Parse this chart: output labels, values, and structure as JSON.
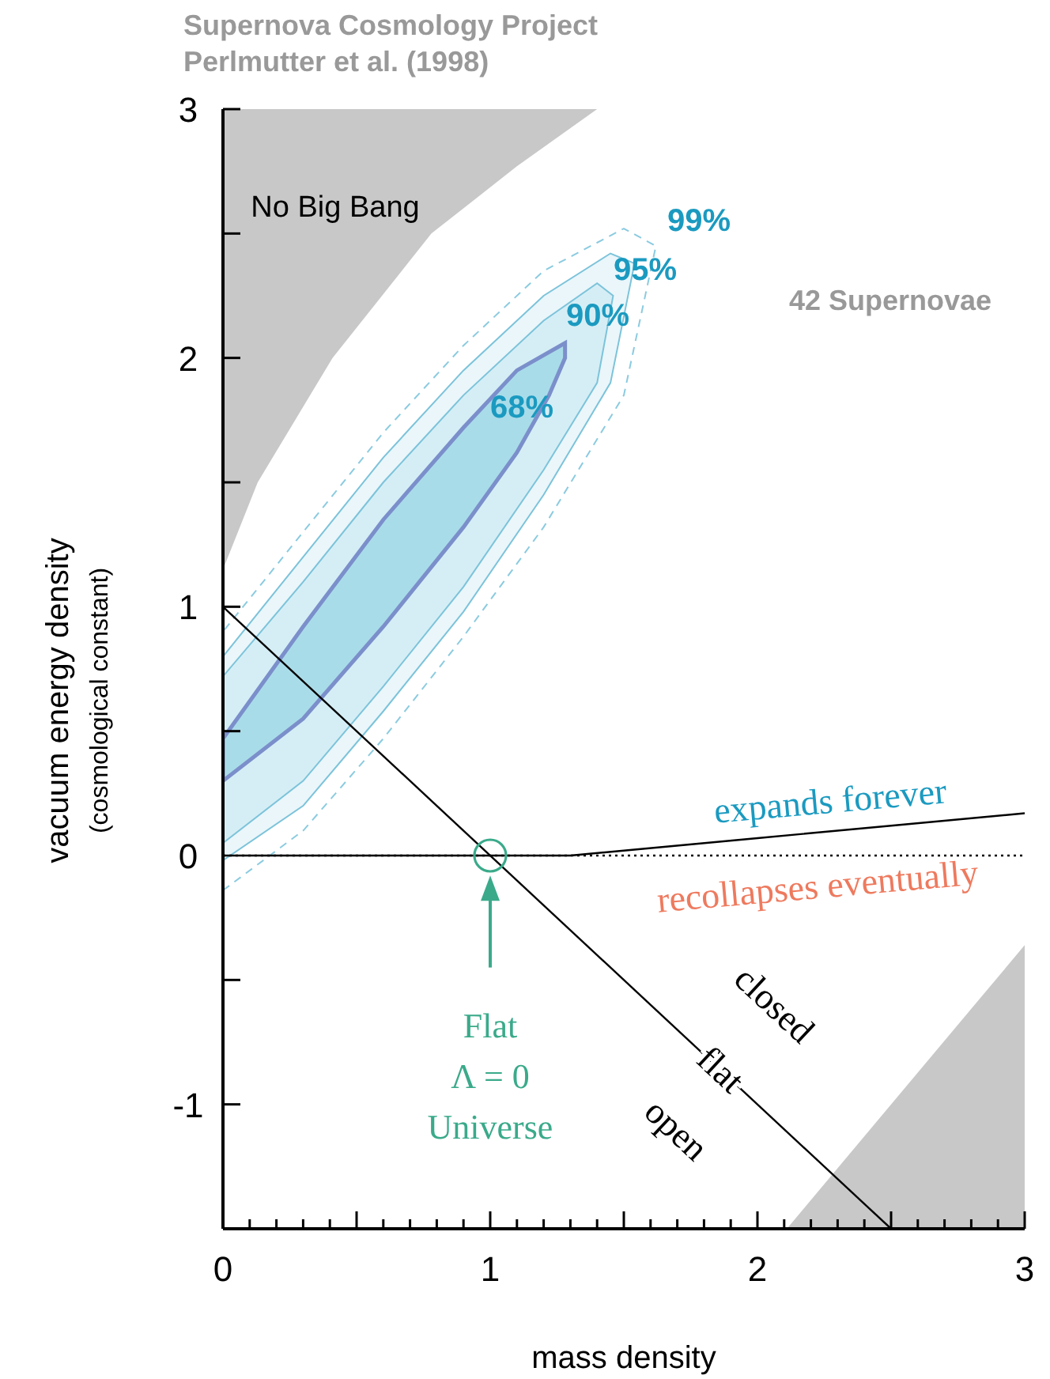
{
  "chart_data": {
    "type": "area",
    "title": "Supernova Cosmology Project",
    "subtitle": "Perlmutter et al. (1998)",
    "xlabel": "mass density",
    "ylabel": "vacuum energy density\n(cosmological constant)",
    "xlim": [
      0,
      3
    ],
    "ylim": [
      -1.5,
      3
    ],
    "xticks": [
      0,
      {
        "value": 0.1,
        "label": null
      },
      {
        "value": 0.2,
        "label": null
      },
      {
        "value": 0.3,
        "label": null
      },
      {
        "value": 0.4,
        "label": null
      },
      {
        "value": 0.5,
        "label": null
      },
      {
        "value": 0.6,
        "label": null
      },
      {
        "value": 0.7,
        "label": null
      },
      {
        "value": 0.8,
        "label": null
      },
      {
        "value": 0.9,
        "label": null
      },
      1,
      {
        "value": 1.1,
        "label": null
      },
      {
        "value": 1.2,
        "label": null
      },
      {
        "value": 1.3,
        "label": null
      },
      {
        "value": 1.4,
        "label": null
      },
      {
        "value": 1.5,
        "label": null
      },
      {
        "value": 1.6,
        "label": null
      },
      {
        "value": 1.7,
        "label": null
      },
      {
        "value": 1.8,
        "label": null
      },
      {
        "value": 1.9,
        "label": null
      },
      2,
      {
        "value": 2.1,
        "label": null
      },
      {
        "value": 2.2,
        "label": null
      },
      {
        "value": 2.3,
        "label": null
      },
      {
        "value": 2.4,
        "label": null
      },
      {
        "value": 2.5,
        "label": null
      },
      {
        "value": 2.6,
        "label": null
      },
      {
        "value": 2.7,
        "label": null
      },
      {
        "value": 2.8,
        "label": null
      },
      {
        "value": 2.9,
        "label": null
      },
      3
    ],
    "yticks": [
      {
        "value": -1.5,
        "label": null
      },
      -1,
      {
        "value": -0.5,
        "label": null
      },
      0,
      {
        "value": 0.5,
        "label": null
      },
      1,
      {
        "value": 1.5,
        "label": null
      },
      2,
      {
        "value": 2.5,
        "label": null
      },
      3
    ],
    "series": [
      {
        "color": "#c8c8c8",
        "x": [
          0,
          0.13,
          0.41,
          0.78,
          1.1,
          1.4,
          0,
          0
        ],
        "values": [
          1.15,
          1.5,
          2,
          2.5,
          2.77,
          3,
          3,
          1.15
        ]
      },
      {
        "color": "#c8c8c8",
        "x": [
          2.11,
          2.5,
          3,
          3,
          2.11
        ],
        "values": [
          -1.5,
          -1.0,
          -0.36,
          -1.5,
          -1.5
        ]
      },
      {
        "type": "line",
        "color": "#8bcbe0",
        "line_style": "dashed",
        "x": [
          0,
          0.3,
          0.6,
          0.9,
          1.2,
          1.5,
          1.62,
          1.5,
          1.2,
          0.9,
          0.6,
          0.3,
          0
        ],
        "values": [
          -0.14,
          0.1,
          0.47,
          0.88,
          1.32,
          1.85,
          2.45,
          2.52,
          2.35,
          2.05,
          1.7,
          1.3,
          0.9
        ]
      },
      {
        "color": "#eaf6fa",
        "x": [
          0,
          0.3,
          0.6,
          0.9,
          1.2,
          1.45,
          1.54,
          1.45,
          1.2,
          0.9,
          0.6,
          0.3,
          0,
          0
        ],
        "values": [
          -0.02,
          0.2,
          0.58,
          0.98,
          1.45,
          1.9,
          2.38,
          2.42,
          2.25,
          1.95,
          1.6,
          1.2,
          0.8,
          -0.02
        ]
      },
      {
        "color": "#d5eef5",
        "x": [
          0,
          0.3,
          0.6,
          0.9,
          1.2,
          1.4,
          1.46,
          1.4,
          1.2,
          0.9,
          0.6,
          0.3,
          0,
          0
        ],
        "values": [
          0.05,
          0.3,
          0.68,
          1.08,
          1.55,
          1.9,
          2.25,
          2.3,
          2.15,
          1.85,
          1.5,
          1.1,
          0.72,
          0.05
        ]
      },
      {
        "color": "#a9dce9",
        "x": [
          0,
          0.3,
          0.6,
          0.9,
          1.1,
          1.22,
          1.28,
          1.28,
          1.1,
          0.9,
          0.6,
          0.3,
          0,
          0
        ],
        "values": [
          0.3,
          0.55,
          0.92,
          1.32,
          1.62,
          1.85,
          2.0,
          2.06,
          1.95,
          1.72,
          1.35,
          0.92,
          0.47,
          0.3
        ]
      },
      {
        "type": "line",
        "color": "#000000",
        "line_style": "dotted",
        "x": [
          0,
          3
        ],
        "values": [
          0,
          0
        ]
      },
      {
        "type": "line",
        "color": "#000000",
        "line_style": "solid",
        "x": [
          0,
          1.3,
          1.5,
          2,
          2.5,
          3
        ],
        "values": [
          0,
          0,
          0.02,
          0.07,
          0.12,
          0.17
        ]
      },
      {
        "type": "line",
        "color": "#000000",
        "line_style": "solid",
        "x": [
          0,
          2.5
        ],
        "values": [
          1,
          -1.5
        ]
      },
      {
        "type": "scatter",
        "color": "#3aaa8a",
        "marker": "circle",
        "x": [
          1
        ],
        "values": [
          0
        ]
      }
    ],
    "annotations": [
      "68%",
      "90%",
      "95%",
      "99%",
      "No Big Bang",
      "42 Supernovae",
      "expands forever",
      "recollapses eventually",
      "closed",
      "flat",
      "open",
      "Flat\nΛ = 0\nUniverse"
    ]
  }
}
